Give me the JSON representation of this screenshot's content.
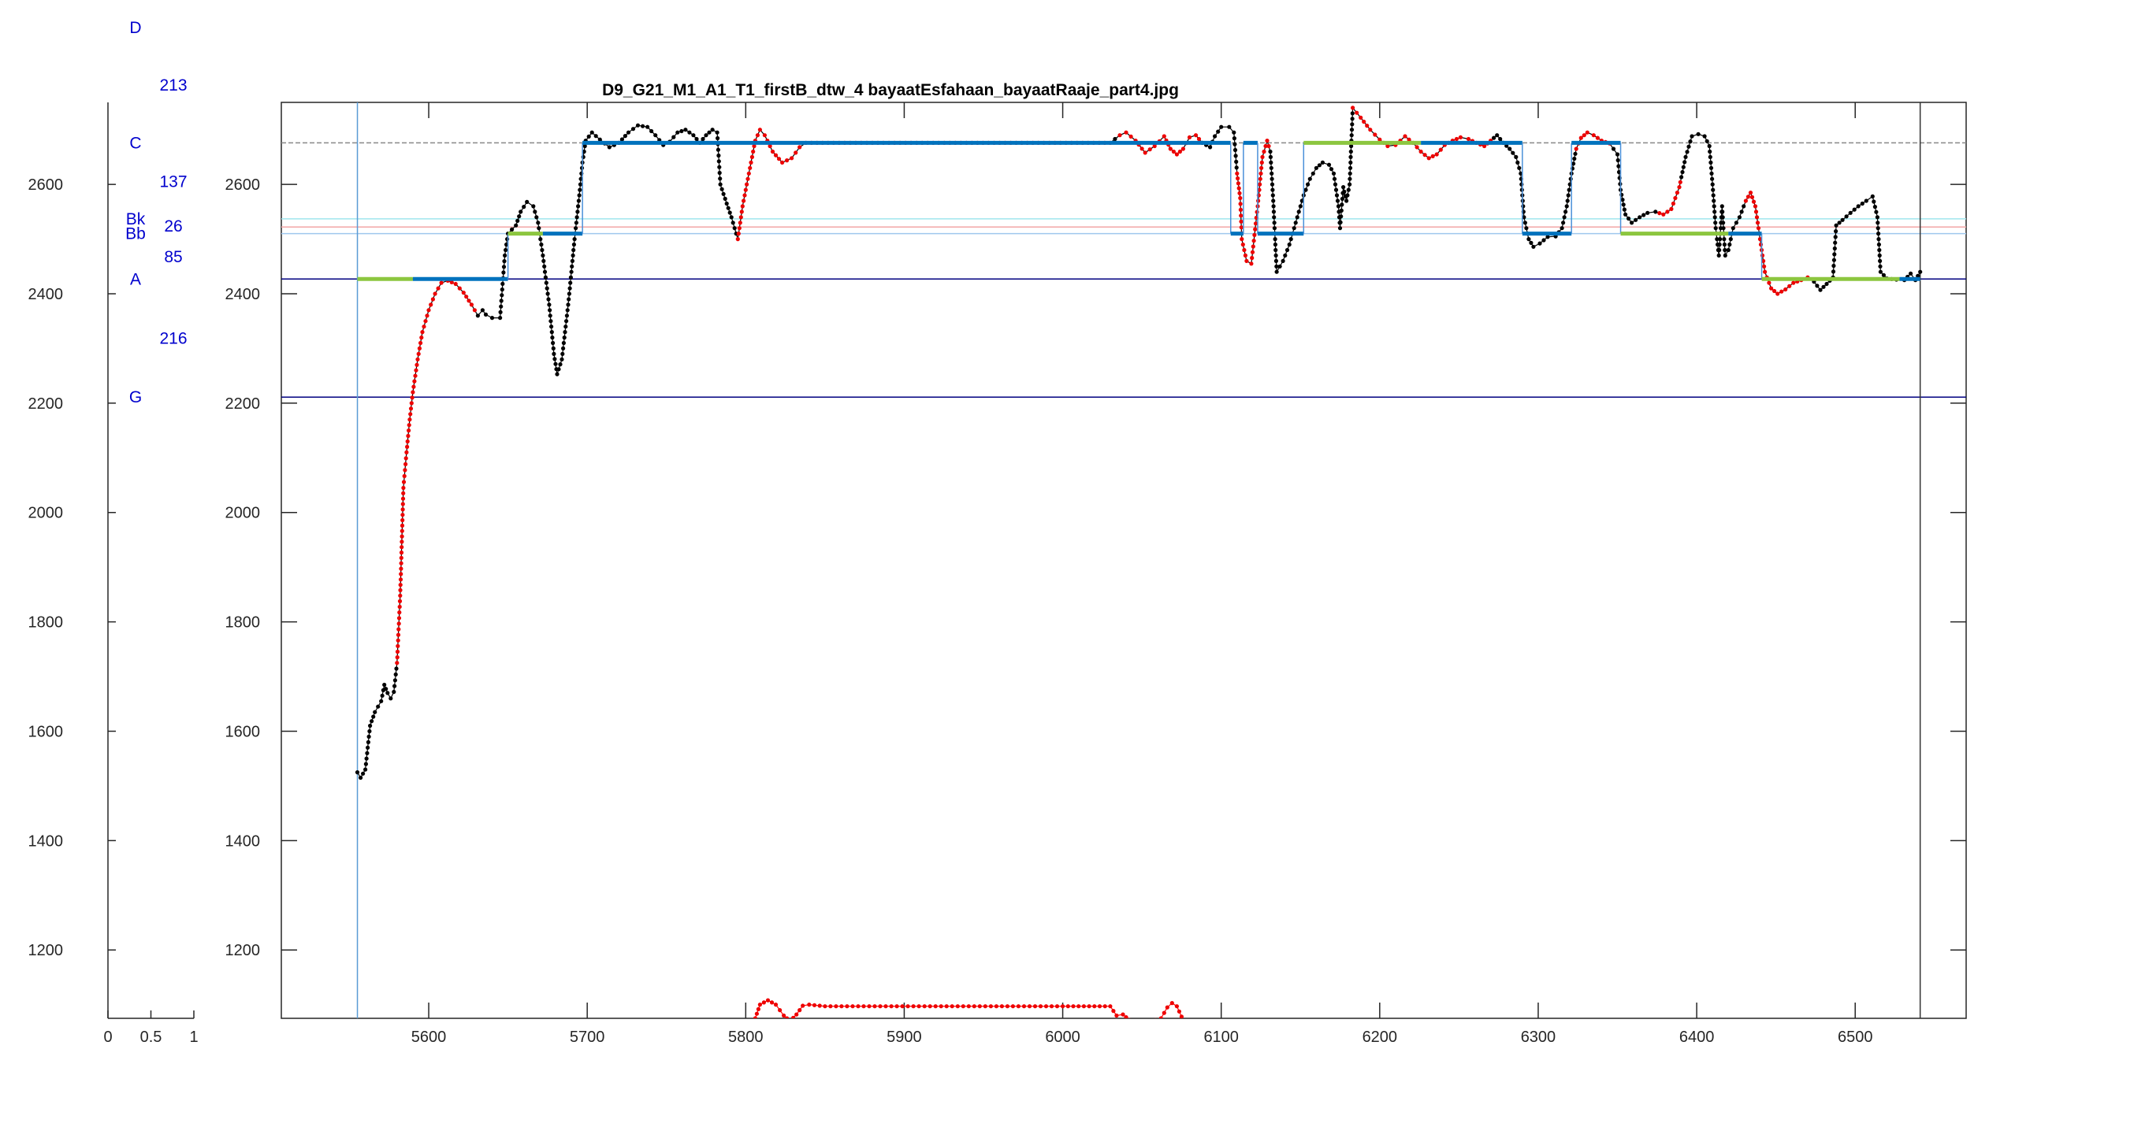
{
  "chart_data": {
    "type": "line",
    "title": "D9_G21_M1_A1_T1_firstB_dtw_4 bayaatEsfahaan_bayaatRaaje_part4.jpg",
    "xlabel": "",
    "ylabel": "",
    "xlim": [
      5507,
      6570
    ],
    "ylim": [
      1075,
      2750
    ],
    "xticks": [
      "5600",
      "5700",
      "5800",
      "5900",
      "6000",
      "6100",
      "6200",
      "6300",
      "6400",
      "6500"
    ],
    "yticks": [
      "1200",
      "1400",
      "1600",
      "1800",
      "2000",
      "2200",
      "2400",
      "2600"
    ],
    "grid": false,
    "reference_lines": [
      {
        "y": 2676,
        "color": "#888888",
        "style": "dashed"
      },
      {
        "y": 2537,
        "color": "#9fe6ee"
      },
      {
        "y": 2522,
        "color": "#f2a6a6"
      },
      {
        "y": 2510,
        "color": "#9fc7ee"
      },
      {
        "y": 2427,
        "color": "#000080"
      },
      {
        "y": 2211,
        "color": "#000080"
      }
    ],
    "note_axis": {
      "xlim": [
        0,
        1
      ],
      "xticks": [
        "0",
        "0.5",
        "1"
      ],
      "yticks": [
        "1200",
        "1400",
        "1600",
        "1800",
        "2000",
        "2200",
        "2400",
        "2600"
      ],
      "notes": [
        {
          "label": "D",
          "y": 2887
        },
        {
          "label": "C",
          "y": 2676
        },
        {
          "label": "Bk",
          "y": 2537
        },
        {
          "label": "Bb",
          "y": 2510
        },
        {
          "label": "A",
          "y": 2427
        },
        {
          "label": "G",
          "y": 2211
        }
      ],
      "intervals": [
        {
          "label": "213",
          "y": 2782
        },
        {
          "label": "137",
          "y": 2605
        },
        {
          "label": "26",
          "y": 2524
        },
        {
          "label": "85",
          "y": 2468
        },
        {
          "label": "216",
          "y": 2319
        }
      ]
    },
    "series": [
      {
        "kind": "curve",
        "color": "#000000",
        "points": [
          [
            5555,
            1525
          ],
          [
            5557,
            1515
          ],
          [
            5560,
            1530
          ],
          [
            5563,
            1610
          ],
          [
            5566,
            1635
          ],
          [
            5570,
            1655
          ],
          [
            5572,
            1685
          ],
          [
            5574,
            1670
          ],
          [
            5576,
            1660
          ],
          [
            5578,
            1672
          ],
          [
            5580,
            1725
          ],
          [
            5582,
            1848
          ],
          [
            5584,
            2045
          ],
          [
            5586,
            2110
          ],
          [
            5588,
            2170
          ],
          [
            5590,
            2220
          ],
          [
            5593,
            2280
          ],
          [
            5596,
            2330
          ],
          [
            5600,
            2370
          ],
          [
            5604,
            2400
          ],
          [
            5608,
            2420
          ],
          [
            5612,
            2424
          ],
          [
            5617,
            2418
          ],
          [
            5622,
            2402
          ],
          [
            5627,
            2380
          ],
          [
            5631,
            2360
          ],
          [
            5634,
            2370
          ],
          [
            5636,
            2362
          ],
          [
            5640,
            2356
          ],
          [
            5645,
            2356
          ],
          [
            5648,
            2470
          ],
          [
            5650,
            2510
          ],
          [
            5655,
            2525
          ],
          [
            5658,
            2550
          ],
          [
            5662,
            2568
          ],
          [
            5666,
            2560
          ],
          [
            5669,
            2530
          ],
          [
            5672,
            2470
          ],
          [
            5676,
            2380
          ],
          [
            5679,
            2290
          ],
          [
            5681,
            2253
          ],
          [
            5684,
            2280
          ],
          [
            5688,
            2380
          ],
          [
            5692,
            2500
          ],
          [
            5695,
            2580
          ],
          [
            5697,
            2640
          ],
          [
            5699,
            2680
          ],
          [
            5703,
            2695
          ],
          [
            5708,
            2682
          ],
          [
            5714,
            2668
          ],
          [
            5720,
            2676
          ],
          [
            5726,
            2695
          ],
          [
            5732,
            2708
          ],
          [
            5738,
            2705
          ],
          [
            5743,
            2690
          ],
          [
            5748,
            2672
          ],
          [
            5752,
            2678
          ],
          [
            5757,
            2695
          ],
          [
            5762,
            2700
          ],
          [
            5767,
            2690
          ],
          [
            5771,
            2676
          ],
          [
            5775,
            2690
          ],
          [
            5779,
            2700
          ],
          [
            5782,
            2695
          ],
          [
            5784,
            2600
          ],
          [
            5788,
            2565
          ],
          [
            5791,
            2540
          ],
          [
            5795,
            2500
          ],
          [
            5798,
            2560
          ],
          [
            5802,
            2620
          ],
          [
            5806,
            2680
          ],
          [
            5809,
            2700
          ],
          [
            5812,
            2690
          ],
          [
            5817,
            2660
          ],
          [
            5823,
            2640
          ],
          [
            5829,
            2648
          ],
          [
            5834,
            2668
          ],
          [
            5838,
            2676
          ],
          [
            6030,
            2676
          ],
          [
            6036,
            2690
          ],
          [
            6040,
            2695
          ],
          [
            6046,
            2680
          ],
          [
            6052,
            2658
          ],
          [
            6058,
            2670
          ],
          [
            6064,
            2688
          ],
          [
            6068,
            2665
          ],
          [
            6072,
            2655
          ],
          [
            6076,
            2665
          ],
          [
            6080,
            2686
          ],
          [
            6084,
            2690
          ],
          [
            6088,
            2676
          ],
          [
            6093,
            2668
          ],
          [
            6096,
            2688
          ],
          [
            6100,
            2705
          ],
          [
            6105,
            2705
          ],
          [
            6108,
            2695
          ],
          [
            6110,
            2620
          ],
          [
            6112,
            2575
          ],
          [
            6113,
            2500
          ],
          [
            6116,
            2460
          ],
          [
            6119,
            2455
          ],
          [
            6123,
            2560
          ],
          [
            6126,
            2650
          ],
          [
            6129,
            2680
          ],
          [
            6131,
            2660
          ],
          [
            6133,
            2560
          ],
          [
            6135,
            2440
          ],
          [
            6139,
            2460
          ],
          [
            6143,
            2490
          ],
          [
            6148,
            2540
          ],
          [
            6152,
            2580
          ],
          [
            6156,
            2610
          ],
          [
            6160,
            2630
          ],
          [
            6164,
            2640
          ],
          [
            6168,
            2636
          ],
          [
            6171,
            2620
          ],
          [
            6174,
            2560
          ],
          [
            6175,
            2520
          ],
          [
            6177,
            2595
          ],
          [
            6179,
            2570
          ],
          [
            6181,
            2600
          ],
          [
            6183,
            2740
          ],
          [
            6188,
            2722
          ],
          [
            6194,
            2700
          ],
          [
            6200,
            2682
          ],
          [
            6205,
            2670
          ],
          [
            6210,
            2672
          ],
          [
            6216,
            2688
          ],
          [
            6221,
            2676
          ],
          [
            6226,
            2660
          ],
          [
            6231,
            2648
          ],
          [
            6236,
            2655
          ],
          [
            6241,
            2672
          ],
          [
            6246,
            2680
          ],
          [
            6251,
            2686
          ],
          [
            6256,
            2683
          ],
          [
            6261,
            2676
          ],
          [
            6266,
            2670
          ],
          [
            6270,
            2680
          ],
          [
            6274,
            2690
          ],
          [
            6278,
            2676
          ],
          [
            6282,
            2665
          ],
          [
            6286,
            2650
          ],
          [
            6289,
            2620
          ],
          [
            6291,
            2540
          ],
          [
            6294,
            2500
          ],
          [
            6297,
            2486
          ],
          [
            6301,
            2492
          ],
          [
            6306,
            2504
          ],
          [
            6311,
            2505
          ],
          [
            6315,
            2520
          ],
          [
            6318,
            2560
          ],
          [
            6321,
            2620
          ],
          [
            6324,
            2665
          ],
          [
            6327,
            2685
          ],
          [
            6331,
            2695
          ],
          [
            6335,
            2690
          ],
          [
            6340,
            2680
          ],
          [
            6345,
            2675
          ],
          [
            6350,
            2655
          ],
          [
            6352,
            2590
          ],
          [
            6355,
            2545
          ],
          [
            6359,
            2530
          ],
          [
            6364,
            2540
          ],
          [
            6369,
            2548
          ],
          [
            6374,
            2550
          ],
          [
            6379,
            2545
          ],
          [
            6384,
            2555
          ],
          [
            6389,
            2595
          ],
          [
            6393,
            2650
          ],
          [
            6397,
            2688
          ],
          [
            6401,
            2692
          ],
          [
            6405,
            2688
          ],
          [
            6408,
            2670
          ],
          [
            6410,
            2600
          ],
          [
            6412,
            2520
          ],
          [
            6414,
            2470
          ],
          [
            6416,
            2560
          ],
          [
            6418,
            2470
          ],
          [
            6420,
            2480
          ],
          [
            6423,
            2520
          ],
          [
            6427,
            2540
          ],
          [
            6431,
            2570
          ],
          [
            6434,
            2585
          ],
          [
            6437,
            2560
          ],
          [
            6440,
            2500
          ],
          [
            6443,
            2440
          ],
          [
            6447,
            2410
          ],
          [
            6451,
            2400
          ],
          [
            6456,
            2408
          ],
          [
            6461,
            2420
          ],
          [
            6466,
            2425
          ],
          [
            6470,
            2430
          ],
          [
            6474,
            2422
          ],
          [
            6478,
            2407
          ],
          [
            6482,
            2418
          ],
          [
            6486,
            2430
          ],
          [
            6488,
            2525
          ],
          [
            6492,
            2535
          ],
          [
            6497,
            2548
          ],
          [
            6502,
            2560
          ],
          [
            6507,
            2570
          ],
          [
            6511,
            2578
          ],
          [
            6514,
            2540
          ],
          [
            6516,
            2440
          ],
          [
            6520,
            2428
          ],
          [
            6526,
            2426
          ],
          [
            6531,
            2425
          ],
          [
            6535,
            2437
          ],
          [
            6538,
            2425
          ],
          [
            6541,
            2440
          ]
        ]
      },
      {
        "kind": "curve",
        "color": "#ff0000",
        "points": [
          [
            5806,
            1075
          ],
          [
            5809,
            1100
          ],
          [
            5814,
            1108
          ],
          [
            5819,
            1100
          ],
          [
            5824,
            1080
          ],
          [
            5828,
            1070
          ],
          [
            5832,
            1082
          ],
          [
            5836,
            1098
          ],
          [
            5840,
            1100
          ],
          [
            5850,
            1097
          ],
          [
            6000,
            1097
          ],
          [
            6030,
            1097
          ],
          [
            6034,
            1080
          ],
          [
            6038,
            1082
          ],
          [
            6042,
            1072
          ],
          [
            6048,
            1062
          ],
          [
            6062,
            1075
          ],
          [
            6066,
            1095
          ],
          [
            6069,
            1103
          ],
          [
            6072,
            1097
          ],
          [
            6075,
            1078
          ]
        ]
      },
      {
        "kind": "steps",
        "segments": [
          {
            "x": [
              5555,
              5590
            ],
            "y": 2427,
            "color": "#8cc63f"
          },
          {
            "x": [
              5590,
              5650
            ],
            "y": 2427,
            "color": "#0072bd"
          },
          {
            "x": [
              5650,
              5672
            ],
            "y": 2510,
            "color": "#8cc63f"
          },
          {
            "x": [
              5672,
              5697
            ],
            "y": 2510,
            "color": "#0072bd"
          },
          {
            "x": [
              5697,
              6106
            ],
            "y": 2676,
            "color": "#0072bd"
          },
          {
            "x": [
              6106,
              6114
            ],
            "y": 2510,
            "color": "#0072bd"
          },
          {
            "x": [
              6114,
              6123
            ],
            "y": 2676,
            "color": "#0072bd"
          },
          {
            "x": [
              6123,
              6152
            ],
            "y": 2510,
            "color": "#0072bd"
          },
          {
            "x": [
              6152,
              6226
            ],
            "y": 2676,
            "color": "#8cc63f"
          },
          {
            "x": [
              6226,
              6290
            ],
            "y": 2676,
            "color": "#0072bd"
          },
          {
            "x": [
              6290,
              6321
            ],
            "y": 2510,
            "color": "#0072bd"
          },
          {
            "x": [
              6321,
              6352
            ],
            "y": 2676,
            "color": "#0072bd"
          },
          {
            "x": [
              6352,
              6420
            ],
            "y": 2510,
            "color": "#8cc63f"
          },
          {
            "x": [
              6420,
              6441
            ],
            "y": 2510,
            "color": "#0072bd"
          },
          {
            "x": [
              6441,
              6528
            ],
            "y": 2427,
            "color": "#8cc63f"
          },
          {
            "x": [
              6528,
              6541
            ],
            "y": 2427,
            "color": "#0072bd"
          }
        ]
      }
    ],
    "red_ranges": [
      [
        5580,
        5630
      ],
      [
        5795,
        6030
      ],
      [
        6036,
        6086
      ],
      [
        6110,
        6130
      ],
      [
        6183,
        6270
      ],
      [
        6324,
        6345
      ],
      [
        6375,
        6390
      ],
      [
        6430,
        6470
      ]
    ],
    "boundaries": [
      {
        "x": 5555,
        "color": "#5a9bd5"
      },
      {
        "x": 6541,
        "color": "#333333"
      }
    ]
  }
}
